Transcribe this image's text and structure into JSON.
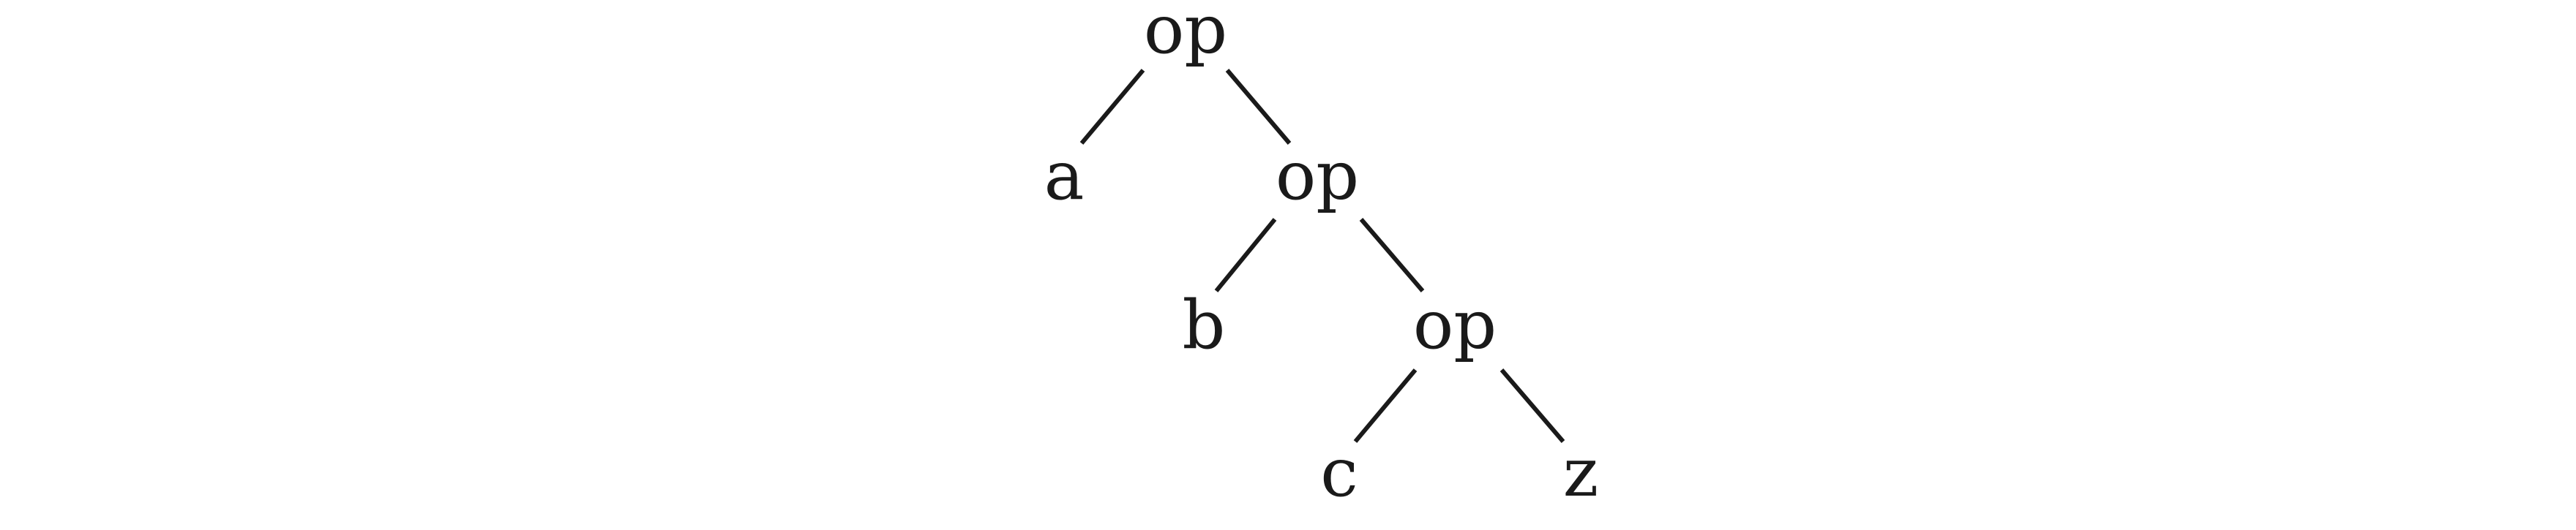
{
  "diagram": {
    "type": "binary-expression-tree",
    "nodes": [
      {
        "id": "n1",
        "label": "op"
      },
      {
        "id": "n2",
        "label": "a"
      },
      {
        "id": "n3",
        "label": "op"
      },
      {
        "id": "n4",
        "label": "b"
      },
      {
        "id": "n5",
        "label": "op"
      },
      {
        "id": "n6",
        "label": "c"
      },
      {
        "id": "n7",
        "label": "z"
      }
    ],
    "edges": [
      {
        "from": "n1",
        "to": "n2"
      },
      {
        "from": "n1",
        "to": "n3"
      },
      {
        "from": "n3",
        "to": "n4"
      },
      {
        "from": "n3",
        "to": "n5"
      },
      {
        "from": "n5",
        "to": "n6"
      },
      {
        "from": "n5",
        "to": "n7"
      }
    ]
  }
}
